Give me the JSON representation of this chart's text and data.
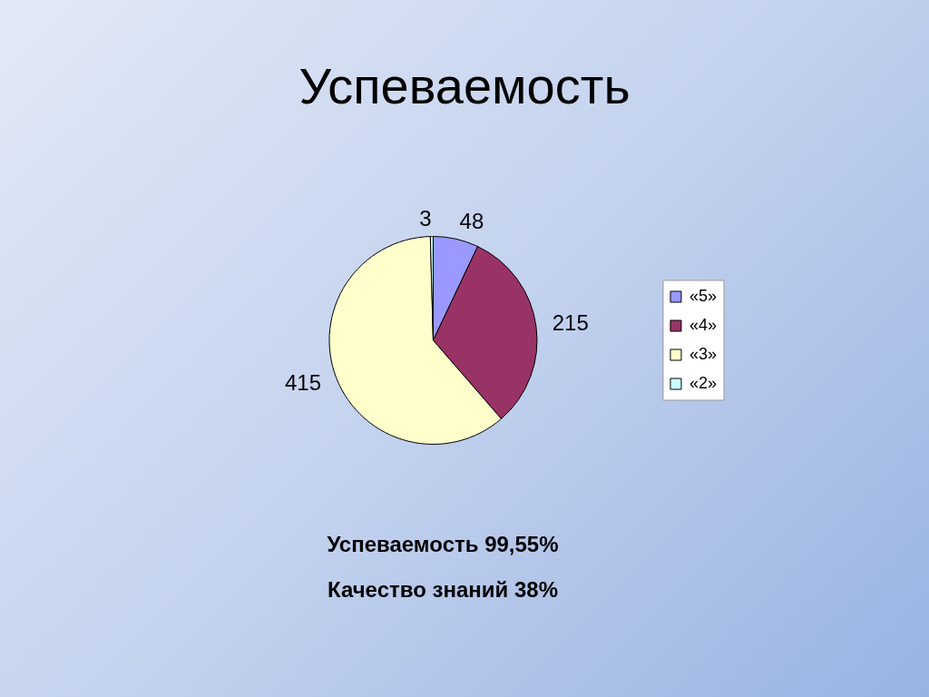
{
  "chart_data": {
    "type": "pie",
    "title": "Успеваемость",
    "categories": [
      "«5»",
      "«4»",
      "«3»",
      "«2»"
    ],
    "values": [
      48,
      215,
      415,
      3
    ],
    "colors": [
      "#9999ff",
      "#993366",
      "#ffffcc",
      "#ccffff"
    ],
    "data_labels": true,
    "legend": "right",
    "annotations": [
      "Успеваемость 99,55%",
      "Качество знаний 38%"
    ]
  }
}
